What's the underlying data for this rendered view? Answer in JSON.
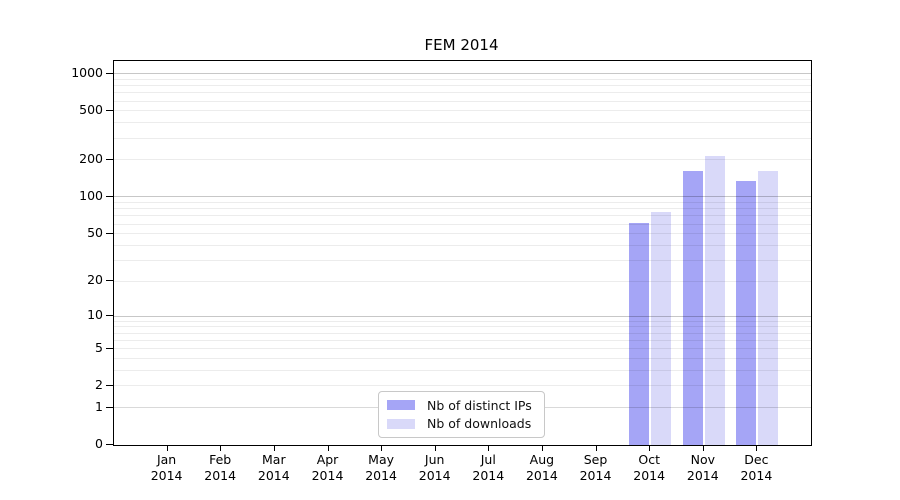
{
  "title": "FEM 2014",
  "chart_data": {
    "type": "bar",
    "title": "FEM 2014",
    "categories": [
      "Jan",
      "Feb",
      "Mar",
      "Apr",
      "May",
      "Jun",
      "Jul",
      "Aug",
      "Sep",
      "Oct",
      "Nov",
      "Dec"
    ],
    "category_year": "2014",
    "series": [
      {
        "name": "Nb of distinct IPs",
        "color": "#a5a5f6",
        "values": [
          0,
          0,
          0,
          0,
          0,
          0,
          0,
          0,
          0,
          61,
          162,
          135
        ]
      },
      {
        "name": "Nb of downloads",
        "color": "#d9d9f9",
        "values": [
          0,
          0,
          0,
          0,
          0,
          0,
          0,
          0,
          0,
          75,
          215,
          162
        ]
      }
    ],
    "xlabel": "",
    "ylabel": "",
    "y_axis": {
      "scale": "log10(value+1)",
      "ylim": [
        0,
        1263
      ],
      "ticks": [
        0,
        1,
        2,
        5,
        10,
        20,
        50,
        100,
        200,
        500,
        1000
      ],
      "major_gridlines": [
        10,
        100,
        1000
      ],
      "mid_gridlines": [
        1
      ],
      "minor_gridlines": [
        2,
        3,
        4,
        5,
        6,
        7,
        8,
        9,
        20,
        30,
        40,
        50,
        60,
        70,
        80,
        90,
        200,
        300,
        400,
        500,
        600,
        700,
        800,
        900
      ]
    },
    "grid": true,
    "legend_position": "bottom-center-inside"
  },
  "legend": {
    "items": [
      {
        "label": "Nb of distinct IPs",
        "color": "#a5a5f6"
      },
      {
        "label": "Nb of downloads",
        "color": "#d9d9f9"
      }
    ]
  }
}
